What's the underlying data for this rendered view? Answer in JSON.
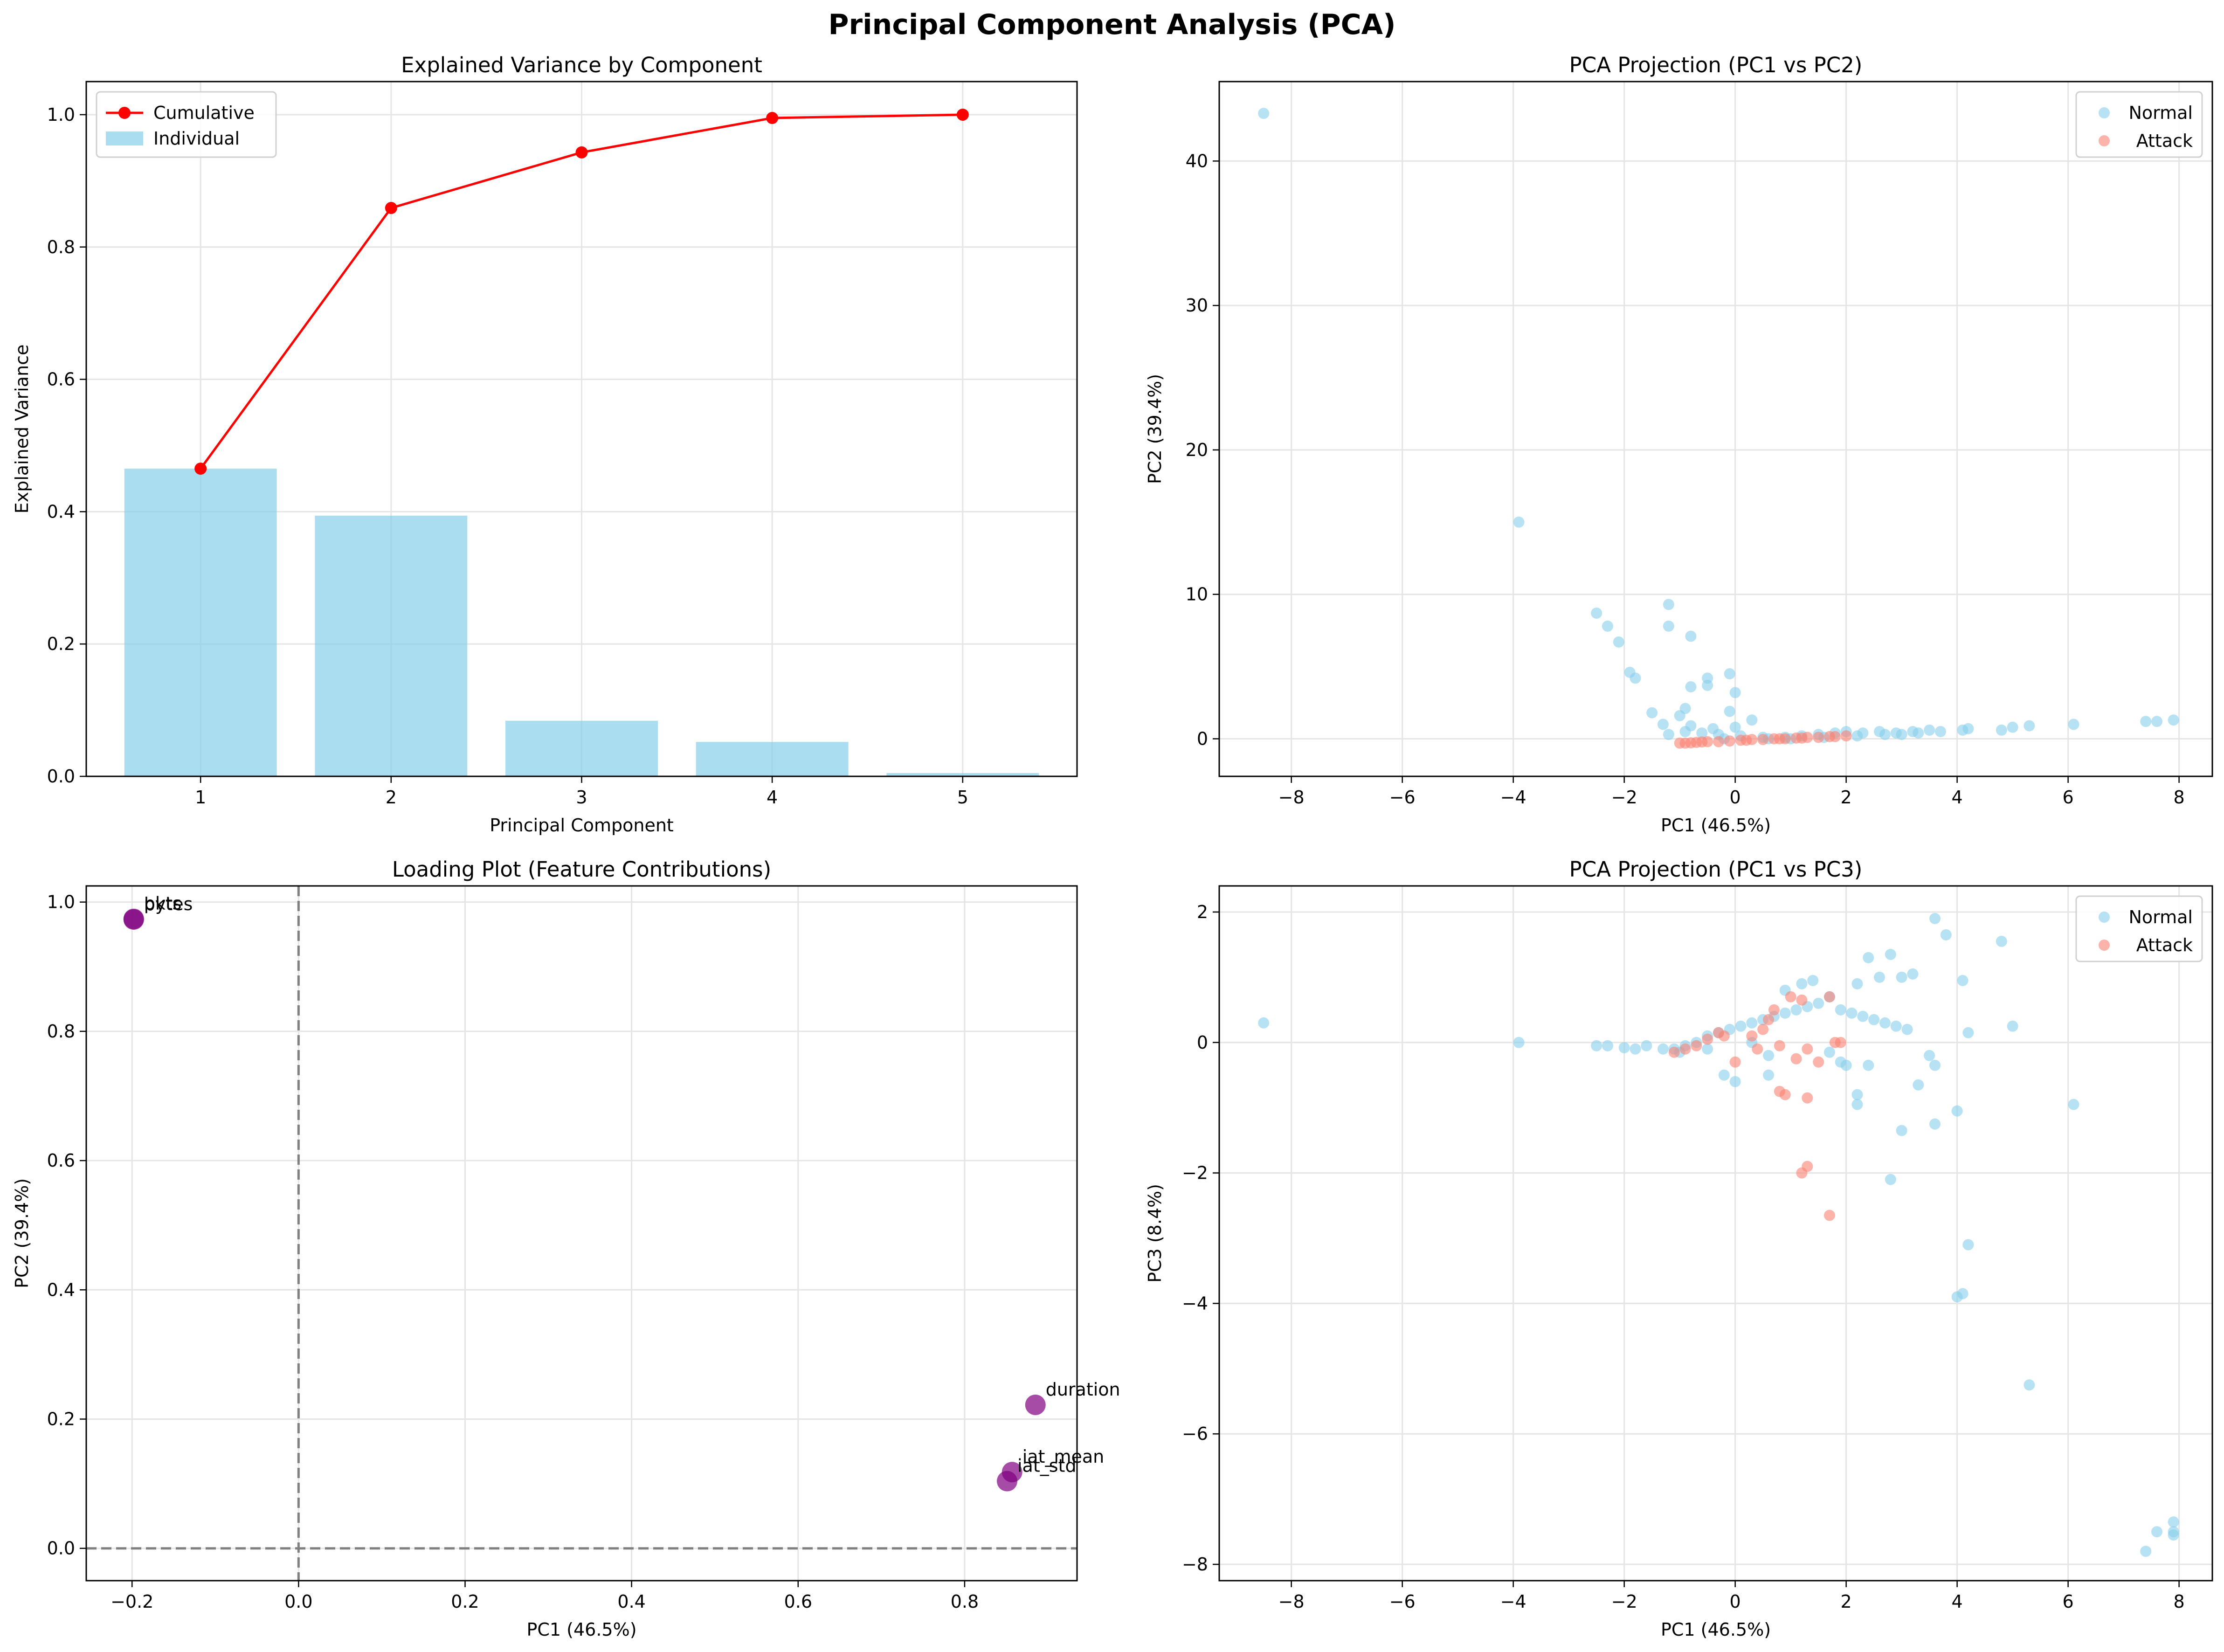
{
  "figure": {
    "title": "Principal Component Analysis (PCA)"
  },
  "colors": {
    "bar": "#87CEEB",
    "cumulative": "#FF0000",
    "normal": "#87CEEB",
    "attack": "#FA8072",
    "loading": "#800080",
    "dash": "#808080",
    "grid": "#e5e5e5"
  },
  "chart_data": [
    {
      "type": "bar",
      "title": "Explained Variance by Component",
      "xlabel": "Principal Component",
      "ylabel": "Explained Variance",
      "categories": [
        "1",
        "2",
        "3",
        "4",
        "5"
      ],
      "xlim": [
        0.4,
        5.6
      ],
      "ylim": [
        0,
        1.05
      ],
      "yticks": [
        0.0,
        0.2,
        0.4,
        0.6,
        0.8,
        1.0
      ],
      "grid": true,
      "legend": "upper left",
      "series": [
        {
          "name": "Individual",
          "type": "bar",
          "values": [
            0.465,
            0.394,
            0.084,
            0.052,
            0.005
          ]
        },
        {
          "name": "Cumulative",
          "type": "line",
          "values": [
            0.465,
            0.859,
            0.943,
            0.995,
            1.0
          ]
        }
      ]
    },
    {
      "type": "scatter",
      "title": "PCA Projection (PC1 vs PC2)",
      "xlabel": "PC1 (46.5%)",
      "ylabel": "PC2 (39.4%)",
      "xlim": [
        -9.3,
        8.6
      ],
      "ylim": [
        -2.6,
        45.5
      ],
      "xticks": [
        -8,
        -6,
        -4,
        -2,
        0,
        2,
        4,
        6,
        8
      ],
      "yticks": [
        0,
        10,
        20,
        30,
        40
      ],
      "grid": true,
      "legend": "upper right",
      "series": [
        {
          "name": "Normal",
          "points": [
            [
              -8.5,
              43.3
            ],
            [
              -3.9,
              15.0
            ],
            [
              -2.5,
              8.7
            ],
            [
              -2.3,
              7.8
            ],
            [
              -2.1,
              6.7
            ],
            [
              -1.2,
              9.3
            ],
            [
              -1.2,
              7.8
            ],
            [
              -0.8,
              7.1
            ],
            [
              -1.9,
              4.6
            ],
            [
              -1.8,
              4.2
            ],
            [
              -0.1,
              4.5
            ],
            [
              -0.5,
              4.2
            ],
            [
              -0.8,
              3.6
            ],
            [
              -0.5,
              3.7
            ],
            [
              0.0,
              3.2
            ],
            [
              -1.5,
              1.8
            ],
            [
              -1.0,
              1.6
            ],
            [
              -0.9,
              2.1
            ],
            [
              -0.1,
              1.9
            ],
            [
              0.3,
              1.3
            ],
            [
              -1.3,
              1.0
            ],
            [
              -0.8,
              0.9
            ],
            [
              -0.4,
              0.7
            ],
            [
              0.0,
              0.8
            ],
            [
              -1.2,
              0.3
            ],
            [
              -0.9,
              0.5
            ],
            [
              -0.6,
              0.4
            ],
            [
              -0.3,
              0.3
            ],
            [
              0.1,
              0.2
            ],
            [
              0.5,
              0.1
            ],
            [
              0.9,
              0.1
            ],
            [
              1.2,
              0.2
            ],
            [
              1.5,
              0.3
            ],
            [
              1.8,
              0.4
            ],
            [
              2.0,
              0.5
            ],
            [
              2.3,
              0.4
            ],
            [
              2.6,
              0.5
            ],
            [
              2.9,
              0.4
            ],
            [
              3.2,
              0.5
            ],
            [
              3.5,
              0.6
            ],
            [
              4.1,
              0.6
            ],
            [
              4.2,
              0.7
            ],
            [
              4.8,
              0.6
            ],
            [
              5.0,
              0.8
            ],
            [
              5.3,
              0.9
            ],
            [
              6.1,
              1.0
            ],
            [
              7.4,
              1.2
            ],
            [
              7.6,
              1.2
            ],
            [
              7.9,
              1.3
            ],
            [
              2.2,
              0.2
            ],
            [
              2.7,
              0.3
            ],
            [
              3.0,
              0.3
            ],
            [
              3.3,
              0.4
            ],
            [
              3.7,
              0.5
            ],
            [
              1.6,
              0.1
            ],
            [
              1.0,
              0.0
            ],
            [
              -0.2,
              0.0
            ],
            [
              0.6,
              0.0
            ]
          ]
        },
        {
          "name": "Attack",
          "points": [
            [
              -1.0,
              -0.3
            ],
            [
              -0.9,
              -0.3
            ],
            [
              -0.7,
              -0.25
            ],
            [
              -0.5,
              -0.2
            ],
            [
              -0.3,
              -0.2
            ],
            [
              -0.1,
              -0.15
            ],
            [
              0.1,
              -0.1
            ],
            [
              0.3,
              -0.05
            ],
            [
              0.5,
              -0.05
            ],
            [
              0.7,
              0.0
            ],
            [
              0.9,
              0.0
            ],
            [
              1.1,
              0.05
            ],
            [
              1.3,
              0.1
            ],
            [
              1.5,
              0.1
            ],
            [
              1.7,
              0.15
            ],
            [
              2.0,
              0.2
            ],
            [
              -0.8,
              -0.28
            ],
            [
              -0.6,
              -0.22
            ],
            [
              0.2,
              -0.1
            ],
            [
              0.8,
              0.0
            ],
            [
              1.2,
              0.05
            ],
            [
              1.8,
              0.15
            ]
          ]
        }
      ]
    },
    {
      "type": "scatter",
      "title": "Loading Plot (Feature Contributions)",
      "xlabel": "PC1 (46.5%)",
      "ylabel": "PC2 (39.4%)",
      "xlim": [
        -0.255,
        0.935
      ],
      "ylim": [
        -0.05,
        1.025
      ],
      "xticks": [
        -0.2,
        0.0,
        0.2,
        0.4,
        0.6,
        0.8
      ],
      "yticks": [
        0.0,
        0.2,
        0.4,
        0.6,
        0.8,
        1.0
      ],
      "grid": true,
      "reference_lines": {
        "x": 0,
        "y": 0
      },
      "points": [
        {
          "label": "bytes",
          "x": -0.198,
          "y": 0.973
        },
        {
          "label": "pkts",
          "x": -0.198,
          "y": 0.974
        },
        {
          "label": "duration",
          "x": 0.885,
          "y": 0.222
        },
        {
          "label": "iat_mean",
          "x": 0.857,
          "y": 0.118
        },
        {
          "label": "iat_std",
          "x": 0.851,
          "y": 0.104
        }
      ]
    },
    {
      "type": "scatter",
      "title": "PCA Projection (PC1 vs PC3)",
      "xlabel": "PC1 (46.5%)",
      "ylabel": "PC3 (8.4%)",
      "xlim": [
        -9.3,
        8.6
      ],
      "ylim": [
        -8.25,
        2.4
      ],
      "xticks": [
        -8,
        -6,
        -4,
        -2,
        0,
        2,
        4,
        6,
        8
      ],
      "yticks": [
        -8,
        -6,
        -4,
        -2,
        0,
        2
      ],
      "grid": true,
      "legend": "upper right",
      "series": [
        {
          "name": "Normal",
          "points": [
            [
              -8.5,
              0.3
            ],
            [
              -3.9,
              0.0
            ],
            [
              -2.5,
              -0.05
            ],
            [
              -2.3,
              -0.05
            ],
            [
              -2.0,
              -0.08
            ],
            [
              -1.8,
              -0.1
            ],
            [
              -1.6,
              -0.05
            ],
            [
              -1.3,
              -0.1
            ],
            [
              -1.1,
              -0.1
            ],
            [
              -0.9,
              -0.05
            ],
            [
              -0.7,
              0.0
            ],
            [
              -0.5,
              0.1
            ],
            [
              -0.3,
              0.15
            ],
            [
              -0.1,
              0.2
            ],
            [
              0.1,
              0.25
            ],
            [
              0.3,
              0.3
            ],
            [
              0.5,
              0.35
            ],
            [
              0.7,
              0.4
            ],
            [
              0.9,
              0.45
            ],
            [
              1.1,
              0.5
            ],
            [
              1.3,
              0.55
            ],
            [
              1.5,
              0.6
            ],
            [
              1.7,
              0.7
            ],
            [
              1.9,
              0.5
            ],
            [
              2.1,
              0.45
            ],
            [
              2.3,
              0.4
            ],
            [
              2.5,
              0.35
            ],
            [
              2.7,
              0.3
            ],
            [
              2.9,
              0.25
            ],
            [
              3.1,
              0.2
            ],
            [
              2.2,
              0.9
            ],
            [
              2.6,
              1.0
            ],
            [
              3.0,
              1.0
            ],
            [
              3.2,
              1.05
            ],
            [
              2.4,
              1.3
            ],
            [
              2.8,
              1.35
            ],
            [
              1.2,
              0.9
            ],
            [
              1.4,
              0.95
            ],
            [
              0.9,
              0.8
            ],
            [
              3.6,
              1.9
            ],
            [
              3.8,
              1.65
            ],
            [
              4.8,
              1.55
            ],
            [
              4.1,
              0.95
            ],
            [
              5.0,
              0.25
            ],
            [
              4.2,
              0.15
            ],
            [
              6.1,
              -0.95
            ],
            [
              3.5,
              -0.2
            ],
            [
              3.6,
              -0.35
            ],
            [
              3.3,
              -0.65
            ],
            [
              3.6,
              -1.25
            ],
            [
              3.0,
              -1.35
            ],
            [
              2.8,
              -2.1
            ],
            [
              4.0,
              -1.05
            ],
            [
              4.2,
              -3.1
            ],
            [
              4.1,
              -3.85
            ],
            [
              4.0,
              -3.9
            ],
            [
              5.3,
              -5.25
            ],
            [
              7.4,
              -7.8
            ],
            [
              7.6,
              -7.5
            ],
            [
              7.9,
              -7.5
            ],
            [
              7.9,
              -7.35
            ],
            [
              7.9,
              -7.55
            ],
            [
              2.2,
              -0.8
            ],
            [
              2.2,
              -0.95
            ],
            [
              1.9,
              -0.3
            ],
            [
              0.6,
              -0.5
            ],
            [
              0.0,
              -0.6
            ],
            [
              -0.2,
              -0.5
            ],
            [
              0.6,
              -0.2
            ],
            [
              1.7,
              -0.15
            ],
            [
              2.0,
              -0.35
            ],
            [
              2.4,
              -0.35
            ],
            [
              -0.5,
              -0.1
            ],
            [
              0.3,
              0.0
            ],
            [
              -1.0,
              -0.15
            ]
          ]
        },
        {
          "name": "Attack",
          "points": [
            [
              -1.1,
              -0.15
            ],
            [
              -0.9,
              -0.1
            ],
            [
              -0.7,
              -0.05
            ],
            [
              -0.5,
              0.05
            ],
            [
              -0.3,
              0.15
            ],
            [
              0.0,
              -0.3
            ],
            [
              0.3,
              0.1
            ],
            [
              0.5,
              0.2
            ],
            [
              0.8,
              -0.05
            ],
            [
              0.8,
              -0.75
            ],
            [
              0.9,
              -0.8
            ],
            [
              1.0,
              0.7
            ],
            [
              1.2,
              0.65
            ],
            [
              1.3,
              -0.1
            ],
            [
              1.3,
              -0.85
            ],
            [
              1.5,
              -0.3
            ],
            [
              1.7,
              0.7
            ],
            [
              1.8,
              0.0
            ],
            [
              1.9,
              0.0
            ],
            [
              1.2,
              -2.0
            ],
            [
              1.3,
              -1.9
            ],
            [
              1.7,
              -2.65
            ],
            [
              1.1,
              -0.25
            ],
            [
              0.6,
              0.35
            ],
            [
              -0.2,
              0.1
            ],
            [
              0.4,
              -0.1
            ],
            [
              0.7,
              0.5
            ]
          ]
        }
      ]
    }
  ]
}
